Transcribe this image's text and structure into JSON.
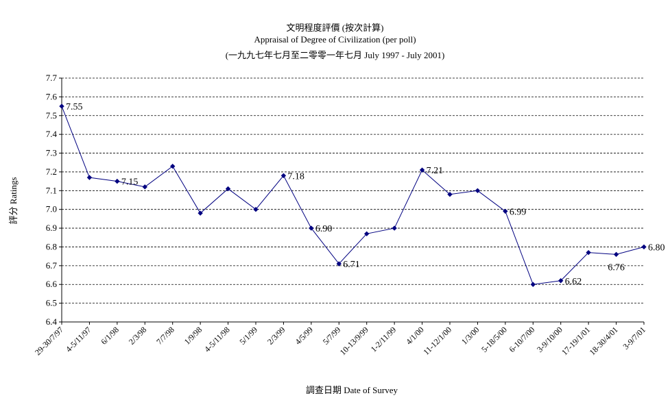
{
  "chart_data": {
    "type": "line",
    "title": "文明程度評價 (按次計算)",
    "subtitle": "Appraisal of Degree of Civilization (per poll)",
    "period": "(一九九七年七月至二零零一年七月 July 1997 - July 2001)",
    "xlabel": "調查日期 Date of Survey",
    "ylabel": "評分 Ratings",
    "ylim": [
      6.4,
      7.7
    ],
    "yticks": [
      "7.7",
      "7.6",
      "7.5",
      "7.4",
      "7.3",
      "7.2",
      "7.1",
      "7.0",
      "6.9",
      "6.8",
      "6.7",
      "6.6",
      "6.5",
      "6.4"
    ],
    "grid": true,
    "line_color": "#000080",
    "categories": [
      "29-30/7/97",
      "4-5/11/97",
      "6/1/98",
      "2/3/98",
      "7/7/98",
      "1/9/98",
      "4-5/11/98",
      "5/1/99",
      "2/3/99",
      "4/5/99",
      "5/7/99",
      "10-13/9/99",
      "1-2/11/99",
      "4/1/00",
      "11-12/1/00",
      "1/3/00",
      "5-18/5/00",
      "6-10/7/00",
      "3-9/10/00",
      "17-19/1/01",
      "18-30/4/01",
      "3-9/7/01"
    ],
    "values": [
      7.55,
      7.17,
      7.15,
      7.12,
      7.23,
      6.98,
      7.11,
      7.0,
      7.18,
      6.9,
      6.71,
      6.87,
      6.9,
      7.21,
      7.08,
      7.1,
      6.99,
      6.6,
      6.62,
      6.77,
      6.76,
      6.8
    ],
    "data_labels": [
      {
        "index": 0,
        "text": "7.55"
      },
      {
        "index": 2,
        "text": "7.15"
      },
      {
        "index": 8,
        "text": "7.18"
      },
      {
        "index": 9,
        "text": "6.90"
      },
      {
        "index": 10,
        "text": "6.71"
      },
      {
        "index": 13,
        "text": "7.21"
      },
      {
        "index": 16,
        "text": "6.99"
      },
      {
        "index": 18,
        "text": "6.62"
      },
      {
        "index": 20,
        "text": "6.76"
      },
      {
        "index": 21,
        "text": "6.80"
      }
    ]
  }
}
